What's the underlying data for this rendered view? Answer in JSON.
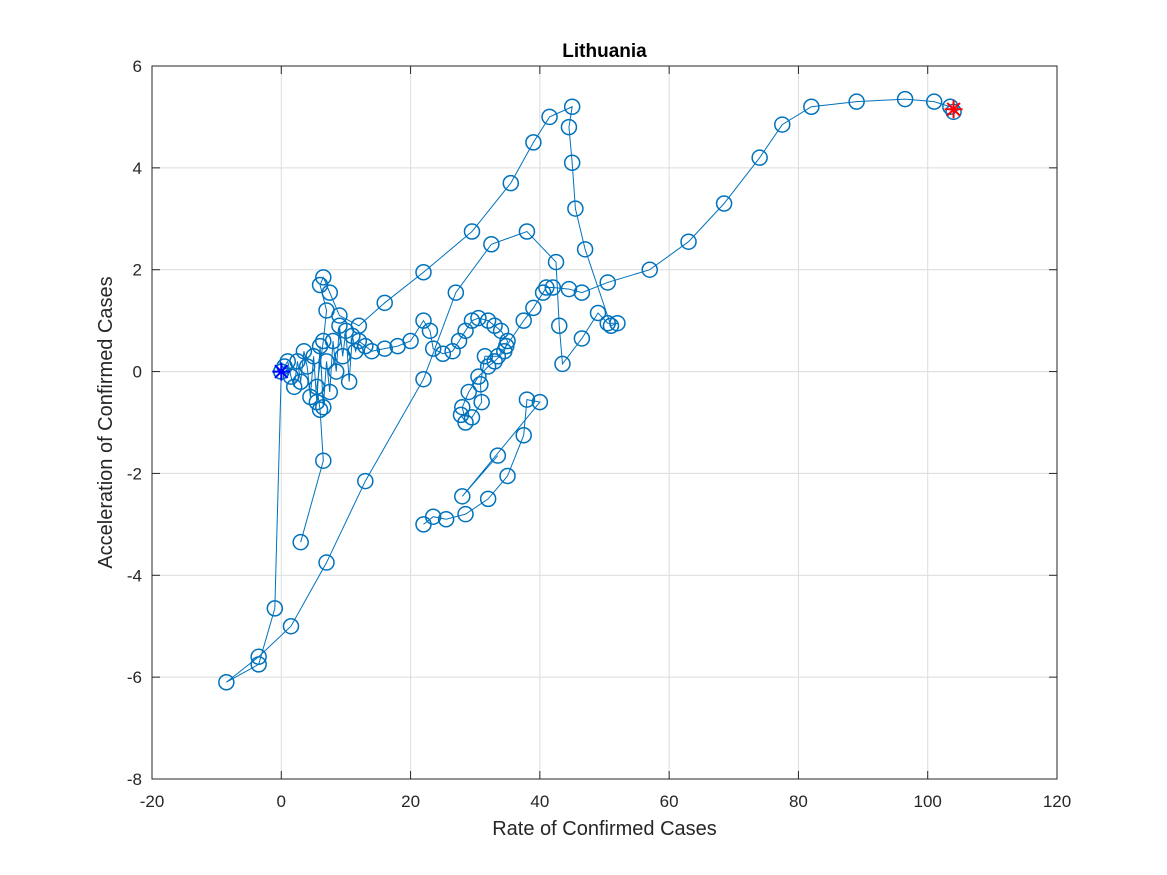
{
  "chart_data": {
    "type": "line",
    "title": "Lithuania",
    "xlabel": "Rate of Confirmed Cases",
    "ylabel": "Acceleration of Confirmed Cases",
    "xlim": [
      -20,
      120
    ],
    "ylim": [
      -8,
      6
    ],
    "xticks": [
      -20,
      0,
      20,
      40,
      60,
      80,
      100,
      120
    ],
    "yticks": [
      -8,
      -6,
      -4,
      -2,
      0,
      2,
      4,
      6
    ],
    "xtick_labels": [
      "-20",
      "0",
      "20",
      "40",
      "60",
      "80",
      "100",
      "120"
    ],
    "ytick_labels": [
      "-8",
      "-6",
      "-4",
      "-2",
      "0",
      "2",
      "4",
      "6"
    ],
    "grid": true,
    "colors": {
      "series": "#0072BD",
      "start_marker": "#0000FF",
      "end_marker": "#FF0000"
    },
    "series": [
      {
        "marker": "circle",
        "points": [
          [
            0,
            0
          ],
          [
            0.5,
            0.1
          ],
          [
            1.0,
            0.2
          ],
          [
            1.5,
            -0.1
          ],
          [
            2.0,
            -0.3
          ],
          [
            2.5,
            0.2
          ],
          [
            3.0,
            -0.2
          ],
          [
            3.5,
            0.4
          ],
          [
            4.0,
            0.1
          ],
          [
            4.5,
            -0.5
          ],
          [
            5.0,
            0.3
          ],
          [
            5.5,
            -0.6
          ],
          [
            6.0,
            0.5
          ],
          [
            6.5,
            -0.7
          ],
          [
            7.0,
            0.2
          ],
          [
            7.5,
            -0.4
          ],
          [
            8.0,
            0.6
          ],
          [
            8.5,
            0.0
          ],
          [
            9.0,
            0.9
          ],
          [
            9.5,
            0.3
          ],
          [
            10.0,
            0.8
          ],
          [
            10.5,
            -0.2
          ],
          [
            11.0,
            0.7
          ],
          [
            11.5,
            0.4
          ],
          [
            12.0,
            0.6
          ],
          [
            13.0,
            0.5
          ],
          [
            14.0,
            0.4
          ],
          [
            16.0,
            0.45
          ],
          [
            18.0,
            0.5
          ],
          [
            20.0,
            0.6
          ],
          [
            22.0,
            1.0
          ],
          [
            23.0,
            0.8
          ],
          [
            23.5,
            0.45
          ],
          [
            25.0,
            0.35
          ],
          [
            26.5,
            0.4
          ],
          [
            27.5,
            0.6
          ],
          [
            28.5,
            0.8
          ],
          [
            29.5,
            1.0
          ],
          [
            30.5,
            1.05
          ],
          [
            32.0,
            1.0
          ],
          [
            33.0,
            0.9
          ],
          [
            34.0,
            0.8
          ],
          [
            35.0,
            0.6
          ],
          [
            34.5,
            0.4
          ],
          [
            33.0,
            0.2
          ],
          [
            32.0,
            0.1
          ],
          [
            30.5,
            -0.1
          ],
          [
            29.0,
            -0.4
          ],
          [
            28.0,
            -0.7
          ],
          [
            28.5,
            -1.0
          ],
          [
            27.8,
            -0.85
          ],
          [
            29.5,
            -0.9
          ],
          [
            31.0,
            -0.6
          ],
          [
            30.8,
            -0.25
          ],
          [
            31.5,
            0.3
          ],
          [
            33.5,
            0.3
          ],
          [
            34.8,
            0.5
          ],
          [
            37.5,
            1.0
          ],
          [
            39.0,
            1.25
          ],
          [
            40.5,
            1.55
          ],
          [
            41.0,
            1.65
          ],
          [
            42.0,
            1.65
          ],
          [
            44.5,
            1.62
          ],
          [
            46.5,
            1.55
          ],
          [
            50.5,
            1.75
          ],
          [
            57.0,
            2.0
          ],
          [
            63.0,
            2.55
          ],
          [
            68.5,
            3.3
          ],
          [
            74.0,
            4.2
          ],
          [
            77.5,
            4.85
          ],
          [
            82.0,
            5.2
          ],
          [
            89.0,
            5.3
          ],
          [
            96.5,
            5.35
          ],
          [
            101.0,
            5.3
          ],
          [
            103.5,
            5.2
          ],
          [
            104.0,
            5.1
          ]
        ]
      },
      {
        "marker": "circle",
        "points": [
          [
            0,
            0
          ],
          [
            -1,
            -4.65
          ],
          [
            -3.5,
            -5.75
          ],
          [
            -8.5,
            -6.1
          ],
          [
            -3.5,
            -5.6
          ],
          [
            1.5,
            -5.0
          ],
          [
            7.0,
            -3.75
          ],
          [
            13.0,
            -2.15
          ],
          [
            22.0,
            -0.15
          ],
          [
            27.0,
            1.55
          ],
          [
            32.5,
            2.5
          ],
          [
            38.0,
            2.75
          ],
          [
            42.5,
            2.15
          ],
          [
            43.0,
            0.9
          ],
          [
            43.5,
            0.15
          ],
          [
            46.5,
            0.65
          ],
          [
            49.0,
            1.15
          ],
          [
            50.5,
            0.95
          ],
          [
            52.0,
            0.95
          ],
          [
            51.0,
            0.9
          ],
          [
            47.0,
            2.4
          ],
          [
            45.5,
            3.2
          ],
          [
            45.0,
            4.1
          ],
          [
            44.5,
            4.8
          ],
          [
            45.0,
            5.2
          ],
          [
            41.5,
            5.0
          ],
          [
            39.0,
            4.5
          ],
          [
            35.5,
            3.7
          ],
          [
            29.5,
            2.75
          ],
          [
            22.0,
            1.95
          ],
          [
            16.0,
            1.35
          ],
          [
            12.0,
            0.9
          ],
          [
            9.0,
            1.1
          ],
          [
            7.5,
            1.55
          ],
          [
            6.5,
            1.85
          ],
          [
            6.0,
            1.7
          ],
          [
            7.0,
            1.2
          ],
          [
            6.5,
            0.6
          ],
          [
            5.5,
            -0.3
          ],
          [
            6.0,
            -0.75
          ],
          [
            6.5,
            -1.75
          ],
          [
            3.0,
            -3.35
          ]
        ]
      },
      {
        "marker": "circle",
        "points": [
          [
            22.0,
            -3.0
          ],
          [
            23.5,
            -2.85
          ],
          [
            25.5,
            -2.9
          ],
          [
            28.5,
            -2.8
          ],
          [
            32.0,
            -2.5
          ],
          [
            35.0,
            -2.05
          ],
          [
            37.5,
            -1.25
          ],
          [
            38.0,
            -0.55
          ],
          [
            40.0,
            -0.6
          ],
          [
            28.0,
            -2.45
          ],
          [
            33.5,
            -1.65
          ]
        ]
      }
    ],
    "start_point": [
      0,
      0
    ],
    "end_point": [
      104,
      5.15
    ]
  }
}
